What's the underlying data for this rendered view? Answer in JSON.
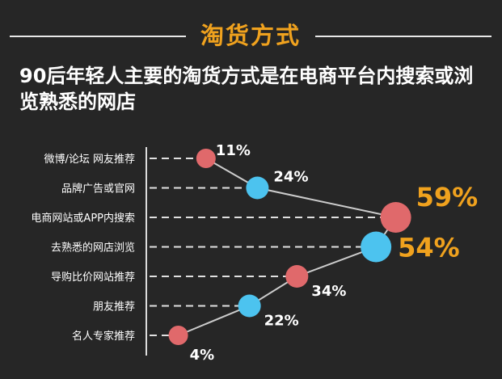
{
  "banner": "淘货方式",
  "subtitle": "90后年轻人主要的淘货方式是在电商平台内搜索或浏览熟悉的网店",
  "colors": {
    "background": "#262626",
    "accent": "#f0a21e",
    "pink": "#e0696b",
    "blue": "#4cc3ef",
    "text": "#ffffff",
    "line": "#cccccc"
  },
  "chart_data": {
    "type": "line",
    "categories": [
      "微博/论坛 网友推荐",
      "品牌广告或官网",
      "电商网站或APP内搜索",
      "去熟悉的网店浏览",
      "导购比价网站推荐",
      "朋友推荐",
      "名人专家推荐"
    ],
    "values": [
      11,
      24,
      59,
      54,
      34,
      22,
      4
    ],
    "labels": [
      "11%",
      "24%",
      "59%",
      "54%",
      "34%",
      "22%",
      "4%"
    ],
    "highlight": [
      false,
      false,
      true,
      true,
      false,
      false,
      false
    ],
    "marker_colors": [
      "pink",
      "blue",
      "pink",
      "blue",
      "pink",
      "blue",
      "pink"
    ],
    "xlim": [
      0,
      62
    ],
    "grid": false
  }
}
